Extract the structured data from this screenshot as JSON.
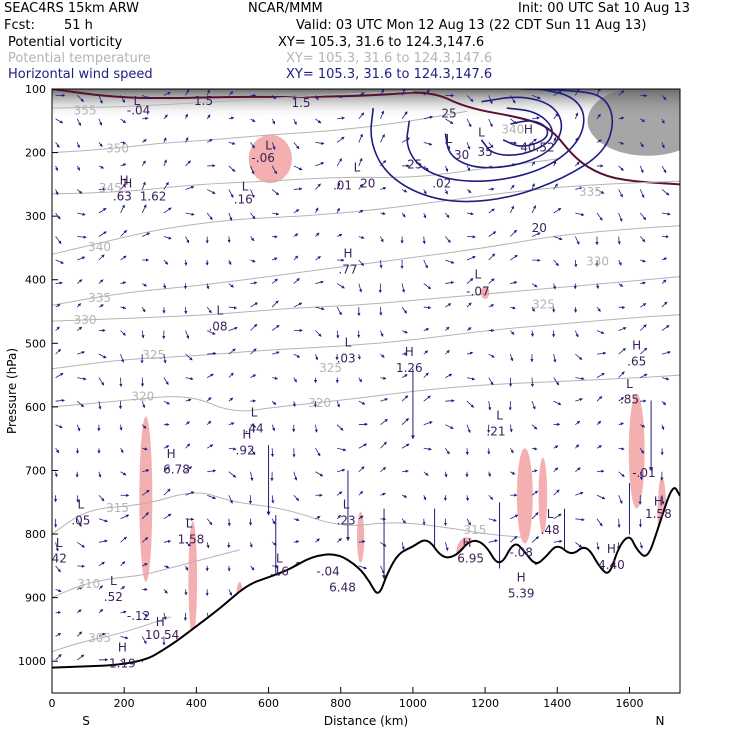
{
  "header": {
    "model": "SEAC4RS 15km ARW",
    "org": "NCAR/MMM",
    "init": "Init: 00 UTC Sat 10 Aug 13",
    "fcst_label": "Fcst:",
    "fcst_value": "51 h",
    "valid": "Valid: 03 UTC Mon 12 Aug 13 (22 CDT Sun 11 Aug 13)"
  },
  "fields": [
    {
      "name": "Potential vorticity",
      "xy": "XY= 105.3, 31.6 to 124.3,147.6",
      "color": "#000000"
    },
    {
      "name": "Potential temperature",
      "xy": "XY= 105.3, 31.6 to 124.3,147.6",
      "color": "#b4b4b4"
    },
    {
      "name": "Horizontal wind speed",
      "xy": "XY= 105.3, 31.6 to 124.3,147.6",
      "color": "#1e1e82"
    }
  ],
  "chart_data": {
    "type": "cross-section",
    "xlabel": "Distance (km)",
    "ylabel": "Pressure (hPa)",
    "xlim": [
      0,
      1740
    ],
    "ylim": [
      1050,
      100
    ],
    "x_ticks": [
      0,
      200,
      400,
      600,
      800,
      1000,
      1200,
      1400,
      1600
    ],
    "y_ticks": [
      100,
      200,
      300,
      400,
      500,
      600,
      700,
      800,
      900,
      1000
    ],
    "end_labels": {
      "left": "S",
      "right": "N"
    },
    "colors": {
      "pv": "#f4b0b0",
      "theta": "#b4b4b4",
      "wind": "#1e1e82",
      "pv2": "#5a1030",
      "terrain": "#000000"
    },
    "terrain": {
      "x": [
        0,
        240,
        330,
        400,
        470,
        540,
        600,
        660,
        720,
        790,
        850,
        880,
        905,
        930,
        960,
        1000,
        1040,
        1080,
        1120,
        1160,
        1200,
        1240,
        1280,
        1310,
        1340,
        1370,
        1400,
        1440,
        1480,
        1520,
        1545,
        1570,
        1600,
        1620,
        1650,
        1680,
        1720,
        1740
      ],
      "p": [
        1010,
        1005,
        975,
        945,
        915,
        880,
        868,
        855,
        835,
        830,
        852,
        875,
        900,
        860,
        830,
        820,
        805,
        838,
        835,
        808,
        815,
        855,
        810,
        828,
        850,
        835,
        815,
        835,
        815,
        855,
        865,
        820,
        800,
        825,
        840,
        790,
        720,
        740
      ]
    },
    "theta_contours": [
      {
        "label": "355",
        "points": [
          [
            0,
            130
          ],
          [
            200,
            128
          ],
          [
            400,
            122
          ],
          [
            600,
            115
          ],
          [
            800,
            108
          ],
          [
            1000,
            104
          ]
        ]
      },
      {
        "label": "350",
        "points": [
          [
            0,
            200
          ],
          [
            150,
            195
          ],
          [
            300,
            185
          ],
          [
            450,
            180
          ],
          [
            600,
            172
          ],
          [
            800,
            165
          ],
          [
            1000,
            150
          ],
          [
            1150,
            135
          ]
        ]
      },
      {
        "label": "345",
        "points": [
          [
            0,
            265
          ],
          [
            200,
            262
          ],
          [
            400,
            250
          ],
          [
            600,
            245
          ],
          [
            800,
            238
          ],
          [
            1000,
            240
          ],
          [
            1200,
            225
          ],
          [
            1400,
            210
          ]
        ]
      },
      {
        "label": "340",
        "points": [
          [
            0,
            360
          ],
          [
            150,
            340
          ],
          [
            300,
            320
          ],
          [
            500,
            305
          ],
          [
            700,
            300
          ],
          [
            900,
            290
          ],
          [
            1100,
            275
          ],
          [
            1300,
            260
          ],
          [
            1500,
            250
          ],
          [
            1740,
            245
          ]
        ]
      },
      {
        "label": "335",
        "points": [
          [
            0,
            440
          ],
          [
            200,
            420
          ],
          [
            400,
            410
          ],
          [
            600,
            395
          ],
          [
            800,
            380
          ],
          [
            1000,
            365
          ],
          [
            1200,
            350
          ],
          [
            1400,
            330
          ],
          [
            1600,
            320
          ],
          [
            1740,
            315
          ]
        ]
      },
      {
        "label": "330",
        "points": [
          [
            0,
            465
          ],
          [
            250,
            460
          ],
          [
            450,
            455
          ],
          [
            650,
            445
          ],
          [
            850,
            440
          ],
          [
            1050,
            430
          ],
          [
            1250,
            420
          ],
          [
            1450,
            410
          ],
          [
            1650,
            400
          ],
          [
            1740,
            395
          ]
        ]
      },
      {
        "label": "325",
        "points": [
          [
            0,
            540
          ],
          [
            200,
            525
          ],
          [
            400,
            520
          ],
          [
            600,
            510
          ],
          [
            800,
            505
          ],
          [
            1000,
            495
          ],
          [
            1200,
            480
          ],
          [
            1400,
            470
          ],
          [
            1600,
            460
          ],
          [
            1740,
            455
          ]
        ]
      },
      {
        "label": "320",
        "points": [
          [
            0,
            600
          ],
          [
            200,
            590
          ],
          [
            380,
            580
          ],
          [
            500,
            610
          ],
          [
            620,
            600
          ],
          [
            800,
            590
          ],
          [
            1000,
            575
          ],
          [
            1200,
            565
          ],
          [
            1400,
            560
          ],
          [
            1600,
            555
          ],
          [
            1740,
            550
          ]
        ]
      },
      {
        "label": "315",
        "points": [
          [
            0,
            800
          ],
          [
            100,
            760
          ],
          [
            250,
            755
          ],
          [
            400,
            730
          ],
          [
            500,
            750
          ],
          [
            650,
            760
          ],
          [
            800,
            790
          ],
          [
            950,
            780
          ],
          [
            1100,
            790
          ],
          [
            1200,
            800
          ],
          [
            1300,
            805
          ]
        ]
      },
      {
        "label": "310",
        "points": [
          [
            0,
            900
          ],
          [
            80,
            880
          ],
          [
            160,
            870
          ],
          [
            250,
            865
          ],
          [
            350,
            850
          ],
          [
            450,
            835
          ],
          [
            520,
            825
          ]
        ]
      },
      {
        "label": "305",
        "points": [
          [
            0,
            985
          ],
          [
            80,
            970
          ],
          [
            200,
            955
          ],
          [
            330,
            930
          ]
        ]
      }
    ],
    "wind_contours": [
      {
        "label": "20",
        "points": [
          [
            890,
            130
          ],
          [
            880,
            180
          ],
          [
            920,
            230
          ],
          [
            1010,
            265
          ],
          [
            1130,
            280
          ],
          [
            1280,
            270
          ],
          [
            1420,
            240
          ],
          [
            1530,
            200
          ],
          [
            1560,
            150
          ],
          [
            1530,
            110
          ],
          [
            1440,
            102
          ],
          [
            1300,
            100
          ]
        ]
      },
      {
        "label": "25",
        "points": [
          [
            990,
            150
          ],
          [
            980,
            190
          ],
          [
            1020,
            225
          ],
          [
            1110,
            245
          ],
          [
            1240,
            245
          ],
          [
            1370,
            225
          ],
          [
            1460,
            185
          ],
          [
            1480,
            140
          ],
          [
            1440,
            110
          ],
          [
            1350,
            100
          ]
        ]
      },
      {
        "label": "30",
        "points": [
          [
            1090,
            170
          ],
          [
            1100,
            205
          ],
          [
            1170,
            225
          ],
          [
            1280,
            222
          ],
          [
            1380,
            200
          ],
          [
            1420,
            160
          ],
          [
            1390,
            125
          ],
          [
            1300,
            110
          ],
          [
            1190,
            120
          ]
        ]
      },
      {
        "label": "35",
        "points": [
          [
            1190,
            180
          ],
          [
            1220,
            203
          ],
          [
            1300,
            205
          ],
          [
            1380,
            185
          ],
          [
            1390,
            160
          ],
          [
            1340,
            135
          ],
          [
            1260,
            130
          ]
        ]
      },
      {
        "label": "40",
        "points": [
          [
            1250,
            180
          ],
          [
            1300,
            193
          ],
          [
            1370,
            180
          ],
          [
            1375,
            160
          ],
          [
            1330,
            148
          ],
          [
            1270,
            155
          ]
        ]
      }
    ],
    "pv_blobs": [
      {
        "cx": 260,
        "cy": 745,
        "rx": 18,
        "ry": 130
      },
      {
        "cx": 390,
        "cy": 870,
        "rx": 12,
        "ry": 90
      },
      {
        "cx": 520,
        "cy": 905,
        "rx": 10,
        "ry": 30
      },
      {
        "cx": 605,
        "cy": 210,
        "rx": 60,
        "ry": 38
      },
      {
        "cx": 855,
        "cy": 805,
        "rx": 10,
        "ry": 40
      },
      {
        "cx": 1310,
        "cy": 740,
        "rx": 22,
        "ry": 75
      },
      {
        "cx": 1360,
        "cy": 740,
        "rx": 12,
        "ry": 60
      },
      {
        "cx": 1620,
        "cy": 670,
        "rx": 22,
        "ry": 90
      },
      {
        "cx": 1690,
        "cy": 770,
        "rx": 12,
        "ry": 60
      },
      {
        "cx": 1200,
        "cy": 420,
        "rx": 12,
        "ry": 10
      },
      {
        "cx": 1150,
        "cy": 830,
        "rx": 30,
        "ry": 25
      }
    ],
    "annotations": [
      {
        "t": "H",
        "x": 200,
        "y": 250
      },
      {
        "t": "H",
        "x": 210,
        "y": 255
      },
      {
        "t": ".63",
        "x": 195,
        "y": 275
      },
      {
        "t": "1.62",
        "x": 280,
        "y": 275
      },
      {
        "t": "L",
        "x": 535,
        "y": 260
      },
      {
        "t": ".16",
        "x": 530,
        "y": 280
      },
      {
        "t": "L",
        "x": 600,
        "y": 195
      },
      {
        "t": "-.06",
        "x": 585,
        "y": 215
      },
      {
        "t": "L",
        "x": 845,
        "y": 230
      },
      {
        "t": ".01",
        "x": 805,
        "y": 258
      },
      {
        "t": "20",
        "x": 875,
        "y": 255
      },
      {
        "t": "L",
        "x": 1100,
        "y": 185
      },
      {
        "t": ".02",
        "x": 1080,
        "y": 255
      },
      {
        "t": "25",
        "x": 1005,
        "y": 225
      },
      {
        "t": "25",
        "x": 1100,
        "y": 145
      },
      {
        "t": "30",
        "x": 1135,
        "y": 210
      },
      {
        "t": "35",
        "x": 1200,
        "y": 205
      },
      {
        "t": "L",
        "x": 1190,
        "y": 175
      },
      {
        "t": "H",
        "x": 1320,
        "y": 170
      },
      {
        "t": "40.52",
        "x": 1345,
        "y": 198
      },
      {
        "t": "20",
        "x": 1350,
        "y": 325
      },
      {
        "t": "1.5",
        "x": 420,
        "y": 125
      },
      {
        "t": "1.5",
        "x": 690,
        "y": 128
      },
      {
        "t": "L",
        "x": 235,
        "y": 125
      },
      {
        "t": "-.04",
        "x": 240,
        "y": 140
      },
      {
        "t": "H",
        "x": 820,
        "y": 365
      },
      {
        "t": ".77",
        "x": 820,
        "y": 390
      },
      {
        "t": "L",
        "x": 1180,
        "y": 398
      },
      {
        "t": "-.07",
        "x": 1180,
        "y": 425
      },
      {
        "t": "L",
        "x": 465,
        "y": 455
      },
      {
        "t": ".08",
        "x": 460,
        "y": 480
      },
      {
        "t": "L",
        "x": 820,
        "y": 505
      },
      {
        "t": ".03",
        "x": 815,
        "y": 530
      },
      {
        "t": "H",
        "x": 990,
        "y": 520
      },
      {
        "t": "1.26",
        "x": 990,
        "y": 545
      },
      {
        "t": "H",
        "x": 1620,
        "y": 510
      },
      {
        "t": ".65",
        "x": 1620,
        "y": 535
      },
      {
        "t": "L",
        "x": 560,
        "y": 615
      },
      {
        "t": ".44",
        "x": 560,
        "y": 640
      },
      {
        "t": "H",
        "x": 540,
        "y": 650
      },
      {
        "t": ".92",
        "x": 535,
        "y": 675
      },
      {
        "t": "H",
        "x": 330,
        "y": 680
      },
      {
        "t": "6.78",
        "x": 345,
        "y": 705
      },
      {
        "t": "L",
        "x": 1240,
        "y": 620
      },
      {
        "t": ".21",
        "x": 1230,
        "y": 645
      },
      {
        "t": "L",
        "x": 1600,
        "y": 570
      },
      {
        "t": ".85",
        "x": 1600,
        "y": 595
      },
      {
        "t": "L",
        "x": 80,
        "y": 760
      },
      {
        "t": ".05",
        "x": 80,
        "y": 785
      },
      {
        "t": "L",
        "x": 20,
        "y": 820
      },
      {
        "t": "42",
        "x": 20,
        "y": 845
      },
      {
        "t": "L",
        "x": 380,
        "y": 790
      },
      {
        "t": "1.58",
        "x": 385,
        "y": 815
      },
      {
        "t": "L",
        "x": 815,
        "y": 760
      },
      {
        "t": ".23",
        "x": 815,
        "y": 785
      },
      {
        "t": "L",
        "x": 630,
        "y": 845
      },
      {
        "t": ".16",
        "x": 630,
        "y": 865
      },
      {
        "t": "-.04",
        "x": 765,
        "y": 865
      },
      {
        "t": "6.48",
        "x": 805,
        "y": 890
      },
      {
        "t": "H",
        "x": 1150,
        "y": 820
      },
      {
        "t": "6.95",
        "x": 1160,
        "y": 845
      },
      {
        "t": "-.08",
        "x": 1300,
        "y": 835
      },
      {
        "t": "H",
        "x": 1300,
        "y": 875
      },
      {
        "t": "5.39",
        "x": 1300,
        "y": 900
      },
      {
        "t": "L",
        "x": 1380,
        "y": 775
      },
      {
        "t": ".48",
        "x": 1380,
        "y": 800
      },
      {
        "t": "H",
        "x": 1550,
        "y": 830
      },
      {
        "t": "4.40",
        "x": 1550,
        "y": 855
      },
      {
        "t": "-.01",
        "x": 1640,
        "y": 710
      },
      {
        "t": "H",
        "x": 1680,
        "y": 755
      },
      {
        "t": "1.58",
        "x": 1680,
        "y": 775
      },
      {
        "t": "L",
        "x": 170,
        "y": 880
      },
      {
        "t": ".52",
        "x": 170,
        "y": 905
      },
      {
        "t": "-.12",
        "x": 240,
        "y": 935
      },
      {
        "t": "H",
        "x": 300,
        "y": 945
      },
      {
        "t": "10.54",
        "x": 305,
        "y": 965
      },
      {
        "t": "H",
        "x": 195,
        "y": 985
      },
      {
        "t": "1.19",
        "x": 195,
        "y": 1010
      }
    ],
    "theta_label_pos": [
      {
        "t": "355",
        "x": 60,
        "y": 140
      },
      {
        "t": "350",
        "x": 150,
        "y": 200
      },
      {
        "t": "345",
        "x": 130,
        "y": 262
      },
      {
        "t": "340",
        "x": 100,
        "y": 355
      },
      {
        "t": "335",
        "x": 100,
        "y": 435
      },
      {
        "t": "330",
        "x": 60,
        "y": 470
      },
      {
        "t": "325",
        "x": 250,
        "y": 525
      },
      {
        "t": "325",
        "x": 740,
        "y": 545
      },
      {
        "t": "325",
        "x": 1330,
        "y": 445
      },
      {
        "t": "330",
        "x": 1480,
        "y": 378
      },
      {
        "t": "320",
        "x": 220,
        "y": 590
      },
      {
        "t": "320",
        "x": 710,
        "y": 600
      },
      {
        "t": "315",
        "x": 150,
        "y": 765
      },
      {
        "t": "315",
        "x": 1140,
        "y": 800
      },
      {
        "t": "310",
        "x": 70,
        "y": 885
      },
      {
        "t": "305",
        "x": 100,
        "y": 970
      },
      {
        "t": "335",
        "x": 1460,
        "y": 268
      },
      {
        "t": "340",
        "x": 1245,
        "y": 170
      }
    ]
  }
}
